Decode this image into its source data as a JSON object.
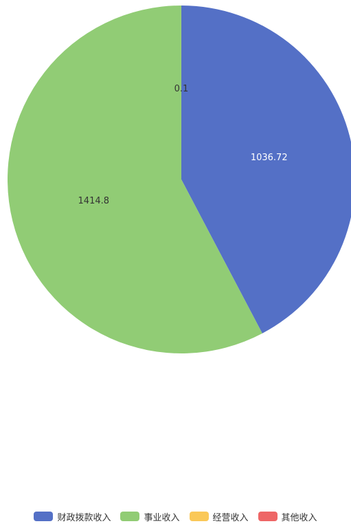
{
  "chart_data": {
    "type": "pie",
    "title": "",
    "categories": [
      "财政拨款收入",
      "事业收入",
      "经营收入",
      "其他收入"
    ],
    "values": [
      1036.72,
      1414.8,
      0.1,
      0
    ],
    "colors": [
      "#5470c6",
      "#91cc75",
      "#fac858",
      "#ee6666"
    ],
    "data_labels": [
      "1036.72",
      "1414.8",
      "0.1",
      ""
    ],
    "legend_position": "bottom"
  },
  "legend": {
    "items": [
      {
        "label": "财政拨款收入",
        "color": "#5470c6"
      },
      {
        "label": "事业收入",
        "color": "#91cc75"
      },
      {
        "label": "经营收入",
        "color": "#fac858"
      },
      {
        "label": "其他收入",
        "color": "#ee6666"
      }
    ]
  }
}
